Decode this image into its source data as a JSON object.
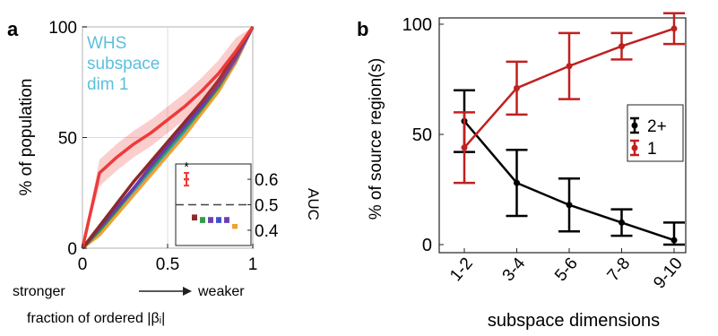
{
  "chart_data": [
    {
      "type": "line",
      "panel_label": "a",
      "xlabel": "fraction of ordered |βᵢ|",
      "ylabel": "% of population",
      "x_direction": {
        "left": "stronger",
        "right": "weaker"
      },
      "xlim": [
        0,
        1
      ],
      "ylim": [
        0,
        100
      ],
      "xticks": [
        {
          "v": 0,
          "label": "0"
        },
        {
          "v": 0.5,
          "label": "0.5"
        },
        {
          "v": 1,
          "label": "1"
        }
      ],
      "yticks": [
        {
          "v": 0,
          "label": "0"
        },
        {
          "v": 50,
          "label": "50"
        },
        {
          "v": 100,
          "label": "100"
        }
      ],
      "grid": true,
      "annotation_lines": [
        "WHS",
        "subspace",
        "dim 1"
      ],
      "annotation_color": "#5bc0de",
      "series": [
        {
          "color": "#f0a030",
          "x": [
            0,
            0.1,
            0.2,
            0.3,
            0.4,
            0.5,
            0.6,
            0.7,
            0.8,
            0.9,
            1
          ],
          "y": [
            0,
            6,
            15,
            24,
            33,
            42,
            51,
            61,
            71,
            84,
            100
          ]
        },
        {
          "color": "#3aa0c8",
          "x": [
            0,
            0.1,
            0.2,
            0.3,
            0.4,
            0.5,
            0.6,
            0.7,
            0.8,
            0.9,
            1
          ],
          "y": [
            0,
            8,
            17,
            26,
            35,
            44,
            53,
            63,
            73,
            85,
            100
          ]
        },
        {
          "color": "#2a9a40",
          "x": [
            0,
            0.1,
            0.2,
            0.3,
            0.4,
            0.5,
            0.6,
            0.7,
            0.8,
            0.9,
            1
          ],
          "y": [
            0,
            8,
            17,
            27,
            36,
            45,
            54,
            63,
            73,
            86,
            100
          ]
        },
        {
          "color": "#6a3ab0",
          "x": [
            0,
            0.1,
            0.2,
            0.3,
            0.4,
            0.5,
            0.6,
            0.7,
            0.8,
            0.9,
            1
          ],
          "y": [
            0,
            9,
            18,
            27,
            37,
            46,
            55,
            64,
            74,
            86,
            100
          ]
        },
        {
          "color": "#8b2a2a",
          "x": [
            0,
            0.1,
            0.2,
            0.3,
            0.4,
            0.5,
            0.6,
            0.7,
            0.8,
            0.9,
            1
          ],
          "y": [
            0,
            10,
            20,
            30,
            39,
            48,
            57,
            66,
            76,
            88,
            100
          ]
        },
        {
          "color": "#ee3a3a",
          "x": [
            0,
            0.1,
            0.2,
            0.3,
            0.4,
            0.5,
            0.6,
            0.7,
            0.8,
            0.9,
            1
          ],
          "y": [
            0,
            34,
            41,
            47,
            52,
            58,
            64,
            71,
            79,
            89,
            100
          ],
          "band": 6
        }
      ],
      "inset": {
        "ylabel": "AUC",
        "ylim": [
          0.34,
          0.66
        ],
        "yticks": [
          {
            "v": 0.4,
            "label": "0.4"
          },
          {
            "v": 0.5,
            "label": "0.5"
          },
          {
            "v": 0.6,
            "label": "0.6"
          }
        ],
        "reference_line": 0.5,
        "significance_mark": "*",
        "points": [
          {
            "color": "#ee3a3a",
            "y": 0.6,
            "err": 0.025
          },
          {
            "color": "#8b2a2a",
            "y": 0.45,
            "err": 0.008
          },
          {
            "color": "#2a9a40",
            "y": 0.44,
            "err": 0.008
          },
          {
            "color": "#6a3ab0",
            "y": 0.44,
            "err": 0.008
          },
          {
            "color": "#3a4ad0",
            "y": 0.44,
            "err": 0.008
          },
          {
            "color": "#6a3ab0",
            "y": 0.44,
            "err": 0.008
          },
          {
            "color": "#f0a030",
            "y": 0.415,
            "err": 0.006
          }
        ]
      }
    },
    {
      "type": "line",
      "panel_label": "b",
      "xlabel": "subspace dimensions",
      "ylabel": "% of source region(s)",
      "categories": [
        "1-2",
        "3-4",
        "5-6",
        "7-8",
        "9-10"
      ],
      "ylim": [
        0,
        100
      ],
      "yticks": [
        {
          "v": 0,
          "label": "0"
        },
        {
          "v": 50,
          "label": "50"
        },
        {
          "v": 100,
          "label": "100"
        }
      ],
      "grid": false,
      "legend_position": "right",
      "series": [
        {
          "name": "2+",
          "color": "#000000",
          "values": [
            56,
            28,
            18,
            10,
            2
          ],
          "err": [
            14,
            15,
            12,
            6,
            8
          ]
        },
        {
          "name": "1",
          "color": "#c02020",
          "values": [
            44,
            71,
            81,
            90,
            98
          ],
          "err": [
            16,
            12,
            15,
            6,
            7
          ]
        }
      ]
    }
  ]
}
